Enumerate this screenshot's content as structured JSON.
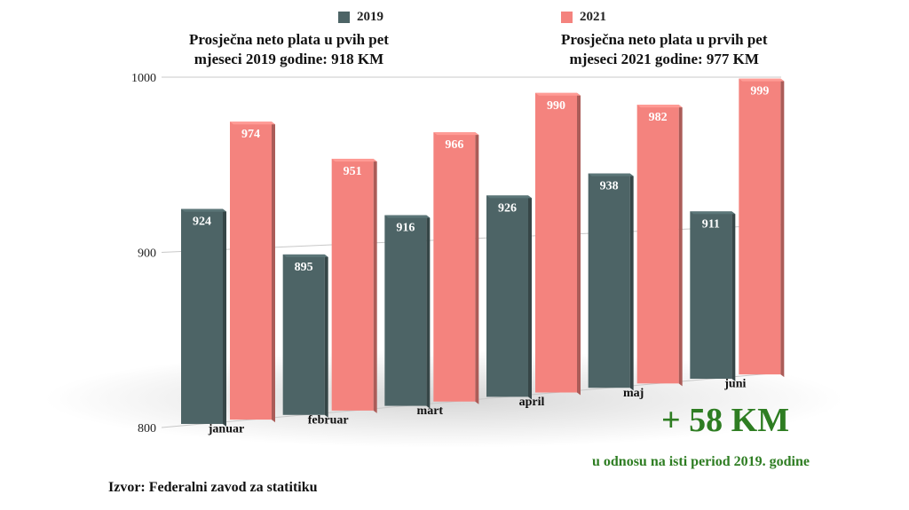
{
  "legend": [
    {
      "label": "2019",
      "color": "#4d6466"
    },
    {
      "label": "2021",
      "color": "#f4837e"
    }
  ],
  "notes": {
    "left_line1": "Prosječna neto plata u pvih pet",
    "left_line2": "mjeseci 2019 godine: 918 KM",
    "right_line1": "Prosječna neto plata u prvih pet",
    "right_line2": "mjeseci 2021 godine: 977 KM"
  },
  "source": "Izvor: Federalni zavod za statitiku",
  "difference": {
    "value": "+ 58 KM",
    "caption": "u odnosu na isti period 2019. godine"
  },
  "chart_data": {
    "type": "bar",
    "categories": [
      "januar",
      "februar",
      "mart",
      "april",
      "maj",
      "juni"
    ],
    "series": [
      {
        "name": "2019",
        "values": [
          924,
          895,
          916,
          926,
          938,
          911
        ],
        "labels": [
          "924",
          "895",
          "916",
          "926",
          "938",
          "911"
        ],
        "color": "#4d6466"
      },
      {
        "name": "2021",
        "values": [
          974,
          951,
          966,
          990,
          982,
          999
        ],
        "labels": [
          "974",
          "951",
          "966",
          "990",
          "982",
          "999"
        ],
        "color": "#f4837e"
      }
    ],
    "yticks": [
      "800",
      "900",
      "1000"
    ],
    "ylim": [
      800,
      1000
    ],
    "grid": true
  }
}
